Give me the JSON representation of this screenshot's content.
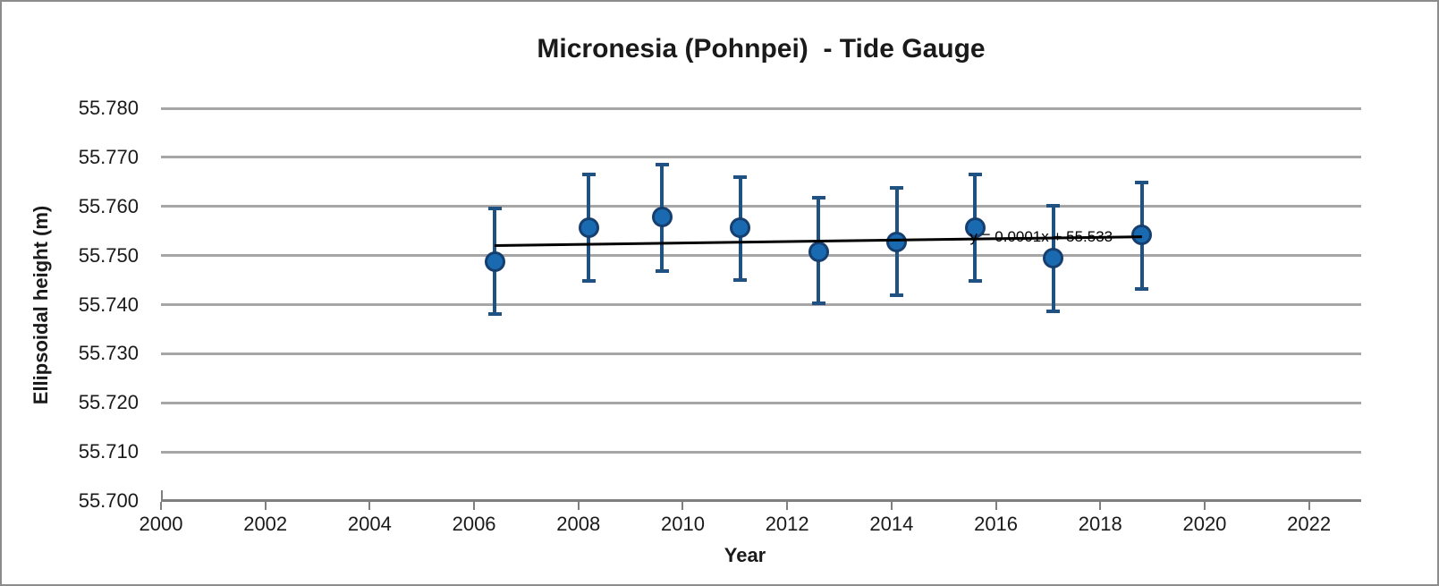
{
  "chart_data": {
    "type": "scatter",
    "title": "Micronesia (Pohnpei)  - Tide Gauge",
    "xlabel": "Year",
    "ylabel": "Ellipsoidal height (m)",
    "xlim": [
      2000,
      2023
    ],
    "ylim": [
      55.7,
      55.78
    ],
    "grid": "horizontal-only",
    "legend": "none",
    "xticks": [
      {
        "v": 2000,
        "label": "2000"
      },
      {
        "v": 2002,
        "label": "2002"
      },
      {
        "v": 2004,
        "label": "2004"
      },
      {
        "v": 2006,
        "label": "2006"
      },
      {
        "v": 2008,
        "label": "2008"
      },
      {
        "v": 2010,
        "label": "2010"
      },
      {
        "v": 2012,
        "label": "2012"
      },
      {
        "v": 2014,
        "label": "2014"
      },
      {
        "v": 2016,
        "label": "2016"
      },
      {
        "v": 2018,
        "label": "2018"
      },
      {
        "v": 2020,
        "label": "2020"
      },
      {
        "v": 2022,
        "label": "2022"
      }
    ],
    "yticks": [
      {
        "v": 55.78,
        "label": "55.780"
      },
      {
        "v": 55.77,
        "label": "55.770"
      },
      {
        "v": 55.76,
        "label": "55.760"
      },
      {
        "v": 55.75,
        "label": "55.750"
      },
      {
        "v": 55.74,
        "label": "55.740"
      },
      {
        "v": 55.73,
        "label": "55.730"
      },
      {
        "v": 55.72,
        "label": "55.720"
      },
      {
        "v": 55.71,
        "label": "55.710"
      },
      {
        "v": 55.7,
        "label": "55.700"
      }
    ],
    "series": [
      {
        "marker": "circle",
        "marker_color": "#1a6ab2",
        "marker_edge_color": "#163f6f",
        "errorbar_color": "#1f5183",
        "points": [
          {
            "x": 2006.4,
            "y": 55.7487,
            "y_hi": 55.7595,
            "y_lo": 55.7381
          },
          {
            "x": 2008.2,
            "y": 55.7556,
            "y_hi": 55.7665,
            "y_lo": 55.7448
          },
          {
            "x": 2009.6,
            "y": 55.7578,
            "y_hi": 55.7686,
            "y_lo": 55.7469
          },
          {
            "x": 2011.1,
            "y": 55.7557,
            "y_hi": 55.766,
            "y_lo": 55.7451
          },
          {
            "x": 2012.6,
            "y": 55.7508,
            "y_hi": 55.7618,
            "y_lo": 55.7403
          },
          {
            "x": 2014.1,
            "y": 55.7528,
            "y_hi": 55.7637,
            "y_lo": 55.742
          },
          {
            "x": 2015.6,
            "y": 55.7556,
            "y_hi": 55.7665,
            "y_lo": 55.7448
          },
          {
            "x": 2017.1,
            "y": 55.7494,
            "y_hi": 55.7602,
            "y_lo": 55.7387
          },
          {
            "x": 2018.8,
            "y": 55.7542,
            "y_hi": 55.7648,
            "y_lo": 55.7432
          }
        ]
      }
    ],
    "trendline": {
      "x1": 2006.4,
      "y1": 55.752,
      "x2": 2018.8,
      "y2": 55.7538,
      "color": "#000000",
      "equation": "y = 0.0001x + 55.533",
      "equation_anchor": {
        "x": 2015.5,
        "y": 55.7535
      }
    },
    "colors": {
      "gridline": "#a6a6a6",
      "axis": "#7f7f7f",
      "frame_border": "#8c8c8c",
      "text": "#1a1a1a"
    }
  }
}
